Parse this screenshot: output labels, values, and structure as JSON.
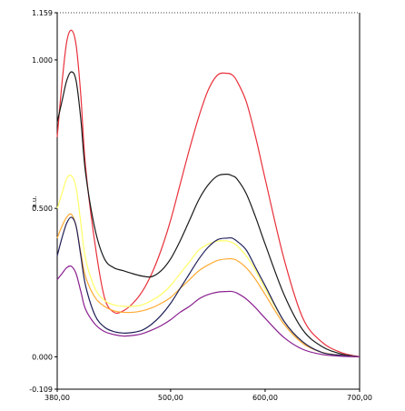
{
  "chart_data": {
    "type": "line",
    "title": "",
    "xlabel": "",
    "ylabel": "a.u.",
    "xlim": [
      380,
      700
    ],
    "ylim": [
      -0.109,
      1.159
    ],
    "x_ticks": [
      {
        "value": 380,
        "label": "380,00"
      },
      {
        "value": 500,
        "label": "500,00"
      },
      {
        "value": 600,
        "label": "600,00"
      },
      {
        "value": 700,
        "label": "700,00"
      }
    ],
    "y_ticks": [
      {
        "value": 1.159,
        "label": "1.159"
      },
      {
        "value": 1.0,
        "label": "1.000"
      },
      {
        "value": 0.5,
        "label": "0.500"
      },
      {
        "value": 0.0,
        "label": "0.000"
      },
      {
        "value": -0.109,
        "label": "-0.109"
      }
    ],
    "grid": false,
    "legend": "none",
    "x": [
      380,
      385,
      390,
      395,
      400,
      405,
      410,
      420,
      430,
      440,
      450,
      460,
      470,
      480,
      490,
      500,
      510,
      520,
      530,
      540,
      550,
      560,
      565,
      570,
      580,
      590,
      600,
      620,
      640,
      660,
      680,
      700
    ],
    "series": [
      {
        "color": "#e8303a",
        "values": [
          0.74,
          0.92,
          1.06,
          1.1,
          1.05,
          0.88,
          0.64,
          0.38,
          0.2,
          0.15,
          0.155,
          0.18,
          0.22,
          0.28,
          0.36,
          0.46,
          0.58,
          0.7,
          0.81,
          0.9,
          0.95,
          0.955,
          0.95,
          0.93,
          0.86,
          0.74,
          0.6,
          0.33,
          0.13,
          0.05,
          0.015,
          0.0
        ]
      },
      {
        "color": "#1a1a1a",
        "values": [
          0.79,
          0.86,
          0.93,
          0.96,
          0.93,
          0.8,
          0.62,
          0.43,
          0.33,
          0.3,
          0.29,
          0.28,
          0.272,
          0.27,
          0.29,
          0.33,
          0.39,
          0.46,
          0.53,
          0.58,
          0.61,
          0.615,
          0.61,
          0.6,
          0.55,
          0.47,
          0.38,
          0.21,
          0.09,
          0.035,
          0.01,
          0.0
        ]
      },
      {
        "color": "#ffff66",
        "values": [
          0.5,
          0.55,
          0.6,
          0.61,
          0.57,
          0.45,
          0.33,
          0.23,
          0.19,
          0.175,
          0.17,
          0.17,
          0.175,
          0.19,
          0.21,
          0.24,
          0.28,
          0.32,
          0.36,
          0.38,
          0.39,
          0.39,
          0.385,
          0.375,
          0.34,
          0.29,
          0.23,
          0.12,
          0.05,
          0.015,
          0.005,
          0.0
        ]
      },
      {
        "color": "#ffaa33",
        "values": [
          0.4,
          0.44,
          0.47,
          0.48,
          0.44,
          0.35,
          0.27,
          0.2,
          0.17,
          0.155,
          0.15,
          0.15,
          0.155,
          0.165,
          0.18,
          0.2,
          0.23,
          0.26,
          0.29,
          0.31,
          0.325,
          0.33,
          0.33,
          0.325,
          0.3,
          0.26,
          0.21,
          0.11,
          0.045,
          0.015,
          0.005,
          0.0
        ]
      },
      {
        "color": "#20205a",
        "values": [
          0.34,
          0.4,
          0.45,
          0.47,
          0.44,
          0.34,
          0.24,
          0.14,
          0.1,
          0.085,
          0.08,
          0.082,
          0.09,
          0.11,
          0.14,
          0.18,
          0.23,
          0.28,
          0.33,
          0.37,
          0.395,
          0.4,
          0.4,
          0.39,
          0.36,
          0.3,
          0.24,
          0.12,
          0.05,
          0.015,
          0.005,
          0.0
        ]
      },
      {
        "color": "#8a2090",
        "values": [
          0.26,
          0.28,
          0.3,
          0.305,
          0.28,
          0.22,
          0.16,
          0.11,
          0.085,
          0.075,
          0.07,
          0.072,
          0.078,
          0.09,
          0.105,
          0.125,
          0.15,
          0.17,
          0.195,
          0.21,
          0.218,
          0.22,
          0.22,
          0.215,
          0.195,
          0.165,
          0.13,
          0.065,
          0.025,
          0.008,
          0.002,
          0.0
        ]
      }
    ]
  }
}
